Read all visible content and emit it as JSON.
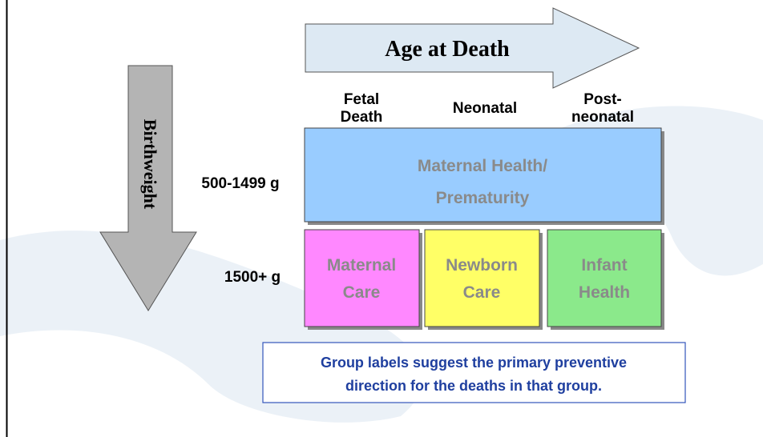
{
  "axes": {
    "horizontal": "Age at Death",
    "vertical": "Birthweight"
  },
  "columns": [
    [
      "Fetal",
      "Death"
    ],
    [
      "Neonatal"
    ],
    [
      "Post-",
      "neonatal"
    ]
  ],
  "rows": [
    "500-1499 g",
    "1500+ g"
  ],
  "cells": {
    "top": [
      "Maternal Health/",
      "Prematurity"
    ],
    "bottom": [
      [
        "Maternal",
        "Care"
      ],
      [
        "Newborn",
        "Care"
      ],
      [
        "Infant",
        "Health"
      ]
    ]
  },
  "note": [
    "Group labels suggest the primary preventive",
    "direction for the deaths in that group."
  ]
}
